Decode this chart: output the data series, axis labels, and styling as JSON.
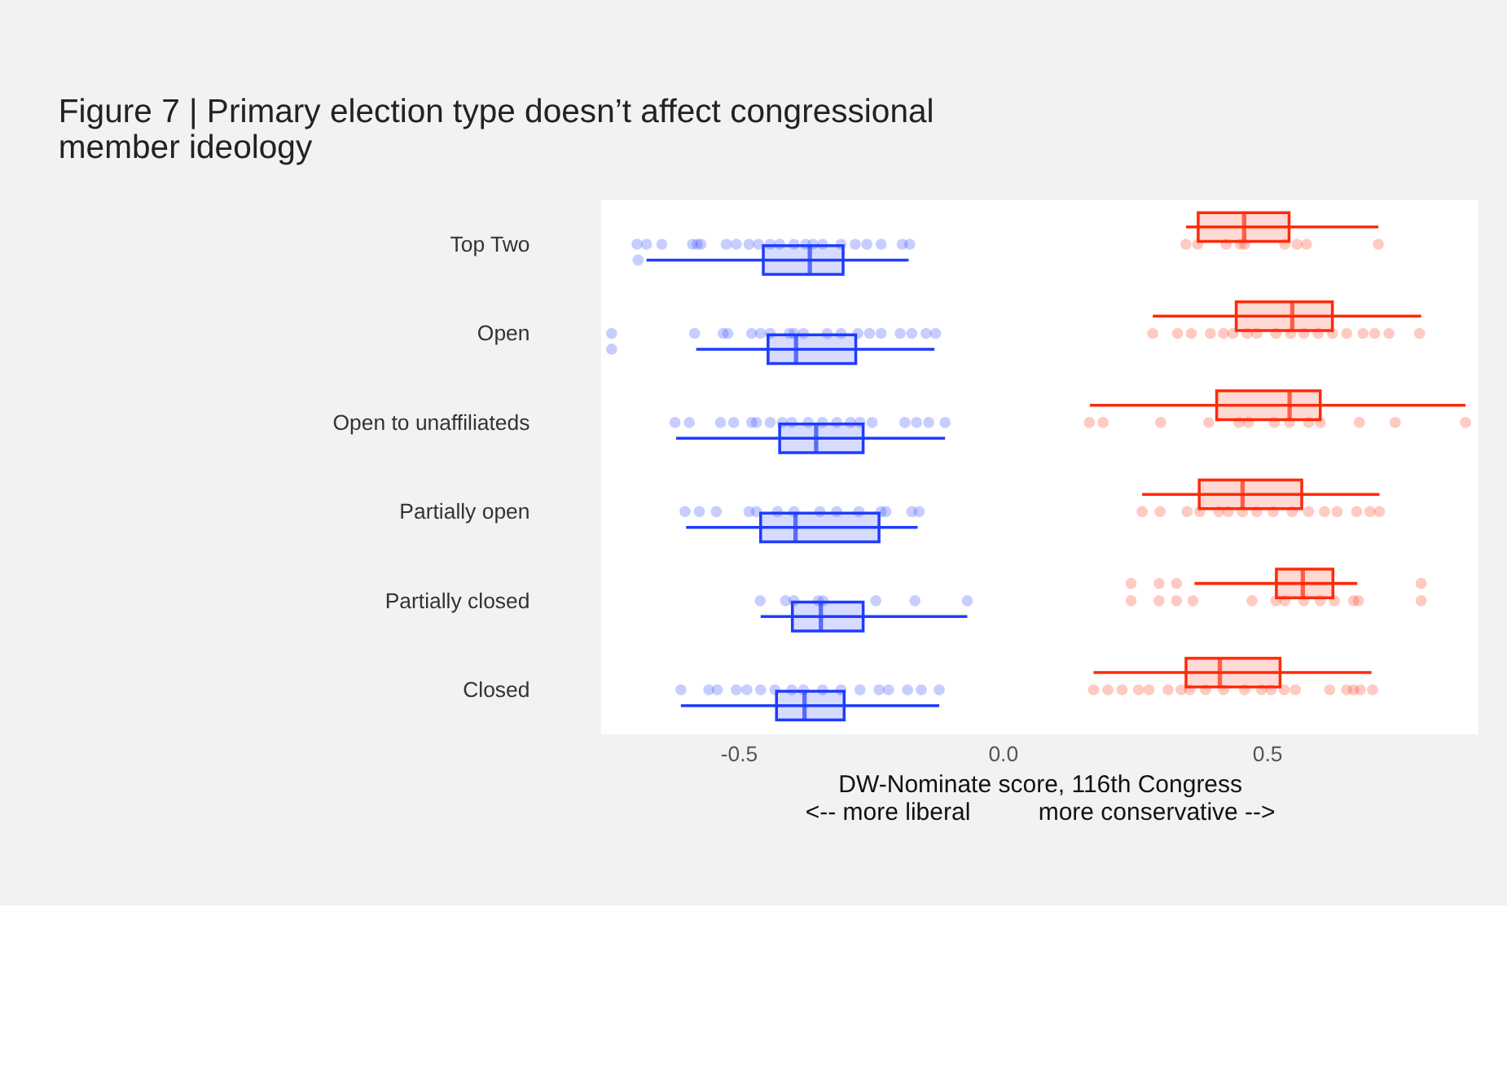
{
  "chart_data": {
    "type": "box",
    "orientation": "horizontal",
    "title": "Figure 7 | Primary election type doesn’t affect congressional member ideology",
    "xlabel": "DW-Nominate score, 116th Congress\n<-- more liberal          more conservative -->",
    "categories": [
      "Top Two",
      "Open",
      "Open to unaffiliateds",
      "Partially open",
      "Partially closed",
      "Closed"
    ],
    "xlim": [
      -0.76,
      0.9
    ],
    "xticks": [
      {
        "value": -0.5,
        "label": "-0.5"
      },
      {
        "value": 0,
        "label": "0.0"
      },
      {
        "value": 0.5,
        "label": "0.5"
      }
    ],
    "series": [
      {
        "color": "#1f3cff",
        "boxes": [
          {
            "low": -0.674,
            "q1": -0.453,
            "median": -0.365,
            "q3": -0.302,
            "high": -0.178,
            "outliers": [
              -0.69
            ]
          },
          {
            "low": -0.58,
            "q1": -0.444,
            "median": -0.391,
            "q3": -0.278,
            "high": -0.129,
            "outliers": [
              -0.74
            ]
          },
          {
            "low": -0.618,
            "q1": -0.422,
            "median": -0.353,
            "q3": -0.264,
            "high": -0.109
          },
          {
            "low": -0.599,
            "q1": -0.458,
            "median": -0.392,
            "q3": -0.234,
            "high": -0.161
          },
          {
            "low": -0.458,
            "q1": -0.398,
            "median": -0.344,
            "q3": -0.264,
            "high": -0.067
          },
          {
            "low": -0.609,
            "q1": -0.428,
            "median": -0.375,
            "q3": -0.3,
            "high": -0.12
          }
        ]
      },
      {
        "color": "#ff2a0a",
        "boxes": [
          {
            "low": 0.347,
            "q1": 0.37,
            "median": 0.457,
            "q3": 0.542,
            "high": 0.711
          },
          {
            "low": 0.284,
            "q1": 0.442,
            "median": 0.548,
            "q3": 0.624,
            "high": 0.792
          },
          {
            "low": 0.165,
            "q1": 0.405,
            "median": 0.543,
            "q3": 0.601,
            "high": 0.876
          },
          {
            "low": 0.264,
            "q1": 0.372,
            "median": 0.454,
            "q3": 0.566,
            "high": 0.713
          },
          {
            "low": 0.363,
            "q1": 0.518,
            "median": 0.568,
            "q3": 0.625,
            "high": 0.671,
            "outliers": [
              0.243,
              0.296,
              0.329,
              0.792
            ]
          },
          {
            "low": 0.172,
            "q1": 0.347,
            "median": 0.411,
            "q3": 0.525,
            "high": 0.698
          }
        ]
      },
      {
        "type": "scatter",
        "color": "#1f3cff",
        "x": [
          "Top Two",
          "Top Two",
          "Top Two",
          "Top Two",
          "Top Two",
          "Top Two",
          "Top Two",
          "Top Two",
          "Top Two",
          "Top Two",
          "Top Two",
          "Top Two",
          "Top Two",
          "Top Two",
          "Top Two",
          "Top Two",
          "Top Two",
          "Top Two",
          "Top Two",
          "Top Two",
          "Top Two",
          "Top Two",
          "Open",
          "Open",
          "Open",
          "Open",
          "Open",
          "Open",
          "Open",
          "Open",
          "Open",
          "Open",
          "Open",
          "Open",
          "Open",
          "Open",
          "Open",
          "Open",
          "Open",
          "Open",
          "Open",
          "Open to unaffiliateds",
          "Open to unaffiliateds",
          "Open to unaffiliateds",
          "Open to unaffiliateds",
          "Open to unaffiliateds",
          "Open to unaffiliateds",
          "Open to unaffiliateds",
          "Open to unaffiliateds",
          "Open to unaffiliateds",
          "Open to unaffiliateds",
          "Open to unaffiliateds",
          "Open to unaffiliateds",
          "Open to unaffiliateds",
          "Open to unaffiliateds",
          "Open to unaffiliateds",
          "Open to unaffiliateds",
          "Open to unaffiliateds",
          "Open to unaffiliateds",
          "Open to unaffiliateds",
          "Partially open",
          "Partially open",
          "Partially open",
          "Partially open",
          "Partially open",
          "Partially open",
          "Partially open",
          "Partially open",
          "Partially open",
          "Partially open",
          "Partially open",
          "Partially open",
          "Partially open",
          "Partially open",
          "Partially closed",
          "Partially closed",
          "Partially closed",
          "Partially closed",
          "Partially closed",
          "Partially closed",
          "Partially closed",
          "Partially closed",
          "Closed",
          "Closed",
          "Closed",
          "Closed",
          "Closed",
          "Closed",
          "Closed",
          "Closed",
          "Closed",
          "Closed",
          "Closed",
          "Closed",
          "Closed",
          "Closed",
          "Closed",
          "Closed",
          "Closed"
        ],
        "values": [
          -0.692,
          -0.674,
          -0.645,
          -0.587,
          -0.578,
          -0.571,
          -0.523,
          -0.504,
          -0.48,
          -0.462,
          -0.44,
          -0.422,
          -0.395,
          -0.373,
          -0.359,
          -0.341,
          -0.306,
          -0.279,
          -0.257,
          -0.23,
          -0.19,
          -0.176,
          -0.74,
          -0.583,
          -0.529,
          -0.52,
          -0.475,
          -0.458,
          -0.44,
          -0.404,
          -0.395,
          -0.377,
          -0.332,
          -0.306,
          -0.274,
          -0.252,
          -0.23,
          -0.194,
          -0.172,
          -0.145,
          -0.127,
          -0.62,
          -0.593,
          -0.534,
          -0.509,
          -0.475,
          -0.466,
          -0.44,
          -0.417,
          -0.399,
          -0.368,
          -0.341,
          -0.314,
          -0.288,
          -0.27,
          -0.247,
          -0.185,
          -0.163,
          -0.14,
          -0.109,
          -0.601,
          -0.574,
          -0.542,
          -0.48,
          -0.466,
          -0.426,
          -0.395,
          -0.346,
          -0.314,
          -0.272,
          -0.23,
          -0.221,
          -0.172,
          -0.158,
          -0.459,
          -0.411,
          -0.395,
          -0.349,
          -0.34,
          -0.24,
          -0.166,
          -0.067,
          -0.609,
          -0.556,
          -0.54,
          -0.504,
          -0.484,
          -0.458,
          -0.431,
          -0.399,
          -0.377,
          -0.341,
          -0.306,
          -0.27,
          -0.234,
          -0.216,
          -0.18,
          -0.154,
          -0.12
        ]
      },
      {
        "type": "scatter",
        "color": "#ff2a0a",
        "x": [
          "Top Two",
          "Top Two",
          "Top Two",
          "Top Two",
          "Top Two",
          "Top Two",
          "Top Two",
          "Top Two",
          "Top Two",
          "Open",
          "Open",
          "Open",
          "Open",
          "Open",
          "Open",
          "Open",
          "Open",
          "Open",
          "Open",
          "Open",
          "Open",
          "Open",
          "Open",
          "Open",
          "Open",
          "Open",
          "Open",
          "Open to unaffiliateds",
          "Open to unaffiliateds",
          "Open to unaffiliateds",
          "Open to unaffiliateds",
          "Open to unaffiliateds",
          "Open to unaffiliateds",
          "Open to unaffiliateds",
          "Open to unaffiliateds",
          "Open to unaffiliateds",
          "Open to unaffiliateds",
          "Open to unaffiliateds",
          "Open to unaffiliateds",
          "Open to unaffiliateds",
          "Partially open",
          "Partially open",
          "Partially open",
          "Partially open",
          "Partially open",
          "Partially open",
          "Partially open",
          "Partially open",
          "Partially open",
          "Partially open",
          "Partially open",
          "Partially open",
          "Partially open",
          "Partially open",
          "Partially open",
          "Partially open",
          "Partially closed",
          "Partially closed",
          "Partially closed",
          "Partially closed",
          "Partially closed",
          "Partially closed",
          "Partially closed",
          "Partially closed",
          "Partially closed",
          "Partially closed",
          "Partially closed",
          "Partially closed",
          "Partially closed",
          "Closed",
          "Closed",
          "Closed",
          "Closed",
          "Closed",
          "Closed",
          "Closed",
          "Closed",
          "Closed",
          "Closed",
          "Closed",
          "Closed",
          "Closed",
          "Closed",
          "Closed",
          "Closed",
          "Closed",
          "Closed",
          "Closed",
          "Closed"
        ],
        "values": [
          0.347,
          0.369,
          0.423,
          0.45,
          0.458,
          0.534,
          0.557,
          0.575,
          0.711,
          0.284,
          0.331,
          0.357,
          0.393,
          0.418,
          0.436,
          0.463,
          0.481,
          0.517,
          0.545,
          0.57,
          0.597,
          0.624,
          0.651,
          0.682,
          0.704,
          0.731,
          0.789,
          0.164,
          0.19,
          0.299,
          0.39,
          0.447,
          0.465,
          0.514,
          0.543,
          0.579,
          0.601,
          0.675,
          0.743,
          0.876,
          0.264,
          0.298,
          0.349,
          0.373,
          0.409,
          0.427,
          0.454,
          0.481,
          0.512,
          0.548,
          0.579,
          0.609,
          0.633,
          0.67,
          0.695,
          0.713,
          0.243,
          0.296,
          0.329,
          0.36,
          0.472,
          0.517,
          0.534,
          0.57,
          0.601,
          0.628,
          0.664,
          0.673,
          0.792,
          0.172,
          0.199,
          0.226,
          0.257,
          0.277,
          0.313,
          0.338,
          0.354,
          0.384,
          0.418,
          0.458,
          0.49,
          0.508,
          0.533,
          0.554,
          0.619,
          0.651,
          0.664,
          0.677,
          0.7
        ]
      }
    ]
  }
}
